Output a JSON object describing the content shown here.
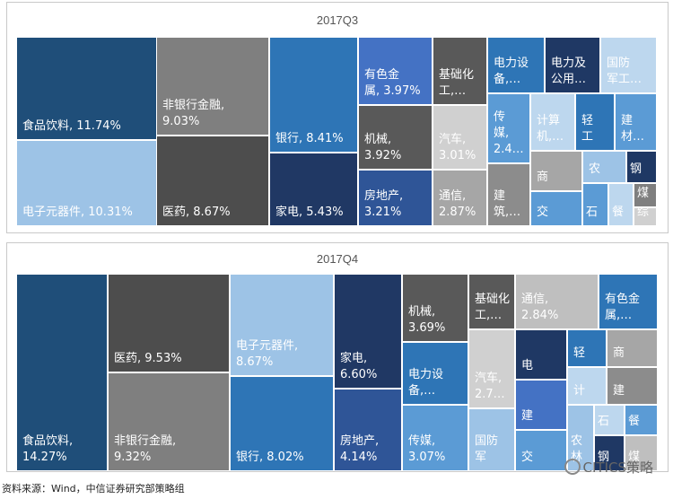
{
  "source": "资料来源：Wind，中信证券研究部策略组",
  "watermark": "CITICS策略",
  "chart_data": [
    {
      "type": "treemap",
      "title": "2017Q3",
      "items": [
        {
          "label": "食品饮料, 11.74%",
          "value": 11.74,
          "color": "#1f4e79"
        },
        {
          "label": "电子元器件, 10.31%",
          "value": 10.31,
          "color": "#9dc3e6"
        },
        {
          "label": "非银行金融,\n9.03%",
          "value": 9.03,
          "color": "#7f7f7f"
        },
        {
          "label": "医药, 8.67%",
          "value": 8.67,
          "color": "#4d4d4d"
        },
        {
          "label": "银行, 8.41%",
          "value": 8.41,
          "color": "#2e75b6"
        },
        {
          "label": "家电, 5.43%",
          "value": 5.43,
          "color": "#203864"
        },
        {
          "label": "有色金\n属, 3.97%",
          "value": 3.97,
          "color": "#4472c4"
        },
        {
          "label": "机械,\n3.92%",
          "value": 3.92,
          "color": "#595959"
        },
        {
          "label": "房地产,\n3.21%",
          "value": 3.21,
          "color": "#2f5597"
        },
        {
          "label": "基础化\n工,…",
          "value": 2.6,
          "color": "#595959"
        },
        {
          "label": "汽车,\n3.01%",
          "value": 3.01,
          "color": "#d0d0d0"
        },
        {
          "label": "通信,\n2.87%",
          "value": 2.87,
          "color": "#a6a6a6"
        },
        {
          "label": "电力设\n备,…",
          "value": 2.3,
          "color": "#2e75b6"
        },
        {
          "label": "电力及\n公用…",
          "value": 2.2,
          "color": "#1f3864"
        },
        {
          "label": "国防\n军工…",
          "value": 2.0,
          "color": "#bdd7ee"
        },
        {
          "label": "传\n媒,\n2.4…",
          "value": 2.4,
          "color": "#5b9bd5"
        },
        {
          "label": "建\n筑,…",
          "value": 2.0,
          "color": "#8c8c8c"
        },
        {
          "label": "计算\n机,…",
          "value": 1.7,
          "color": "#bdd7ee"
        },
        {
          "label": "轻\n工",
          "value": 1.5,
          "color": "#2e75b6"
        },
        {
          "label": "建\n材…",
          "value": 1.5,
          "color": "#5b9bd5"
        },
        {
          "label": "商",
          "value": 1.3,
          "color": "#a6a6a6"
        },
        {
          "label": "交",
          "value": 1.2,
          "color": "#5b9bd5"
        },
        {
          "label": "农",
          "value": 0.8,
          "color": "#9dc3e6"
        },
        {
          "label": "钢",
          "value": 0.7,
          "color": "#1f3864"
        },
        {
          "label": "石",
          "value": 0.5,
          "color": "#5b9bd5"
        },
        {
          "label": "餐",
          "value": 0.5,
          "color": "#bdd7ee"
        },
        {
          "label": "煤",
          "value": 0.4,
          "color": "#7f7f7f"
        },
        {
          "label": "综",
          "value": 0.3,
          "color": "#d0d0d0"
        }
      ]
    },
    {
      "type": "treemap",
      "title": "2017Q4",
      "items": [
        {
          "label": "食品饮料,\n14.27%",
          "value": 14.27,
          "color": "#1f4e79"
        },
        {
          "label": "医药, 9.53%",
          "value": 9.53,
          "color": "#4d4d4d"
        },
        {
          "label": "非银行金融,\n9.32%",
          "value": 9.32,
          "color": "#7f7f7f"
        },
        {
          "label": "电子元器件,\n8.67%",
          "value": 8.67,
          "color": "#9dc3e6"
        },
        {
          "label": "银行, 8.02%",
          "value": 8.02,
          "color": "#2e75b6"
        },
        {
          "label": "家电,\n6.60%",
          "value": 6.6,
          "color": "#203864"
        },
        {
          "label": "房地产,\n4.14%",
          "value": 4.14,
          "color": "#2f5597"
        },
        {
          "label": "机械,\n3.69%",
          "value": 3.69,
          "color": "#595959"
        },
        {
          "label": "电力设\n备,…",
          "value": 3.4,
          "color": "#2e75b6"
        },
        {
          "label": "传媒,\n3.07%",
          "value": 3.07,
          "color": "#5b9bd5"
        },
        {
          "label": "基础化\n工,…",
          "value": 2.9,
          "color": "#595959"
        },
        {
          "label": "汽车,\n2.7…",
          "value": 2.7,
          "color": "#d0d0d0"
        },
        {
          "label": "国防\n军",
          "value": 2.0,
          "color": "#9dc3e6"
        },
        {
          "label": "通信,\n2.84%",
          "value": 2.84,
          "color": "#bfbfbf"
        },
        {
          "label": "有色金\n属,…",
          "value": 2.8,
          "color": "#2e75b6"
        },
        {
          "label": "电",
          "value": 1.7,
          "color": "#1f3864"
        },
        {
          "label": "建",
          "value": 1.6,
          "color": "#4472c4"
        },
        {
          "label": "交",
          "value": 1.4,
          "color": "#5b9bd5"
        },
        {
          "label": "轻",
          "value": 1.2,
          "color": "#2e75b6"
        },
        {
          "label": "商",
          "value": 1.2,
          "color": "#a6a6a6"
        },
        {
          "label": "计",
          "value": 1.0,
          "color": "#bdd7ee"
        },
        {
          "label": "建",
          "value": 1.0,
          "color": "#8c8c8c"
        },
        {
          "label": "农\n林",
          "value": 0.9,
          "color": "#9dc3e6"
        },
        {
          "label": "石",
          "value": 0.6,
          "color": "#bdd7ee"
        },
        {
          "label": "餐",
          "value": 0.6,
          "color": "#5b9bd5"
        },
        {
          "label": "钢",
          "value": 0.5,
          "color": "#1f3864"
        },
        {
          "label": "煤",
          "value": 0.5,
          "color": "#bfbfbf"
        }
      ]
    }
  ]
}
